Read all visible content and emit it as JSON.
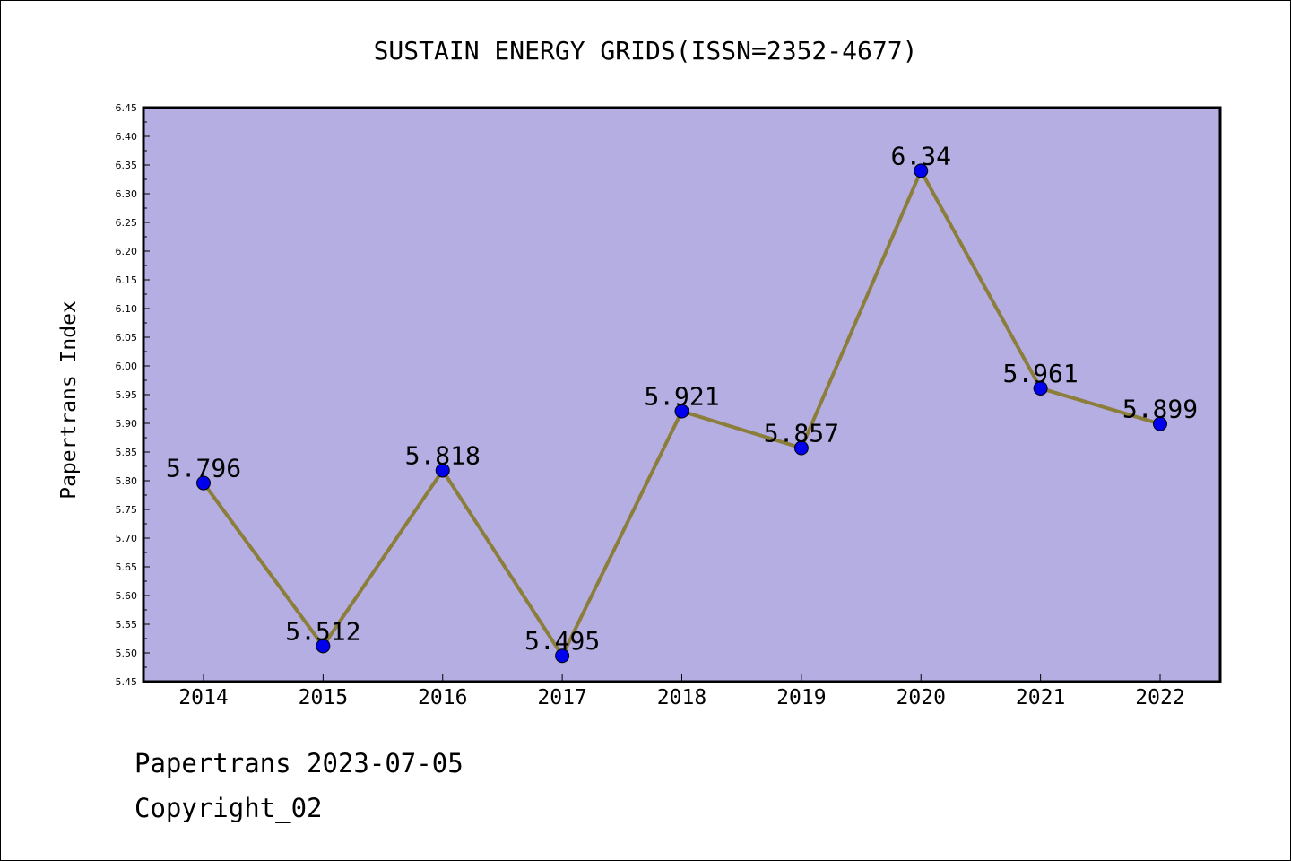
{
  "footer": {
    "line1": "Papertrans 2023-07-05",
    "line2": "Copyright_02"
  },
  "chart_data": {
    "type": "line",
    "title": "SUSTAIN ENERGY GRIDS(ISSN=2352-4677)",
    "xlabel": "",
    "ylabel": "Papertrans Index",
    "categories": [
      "2014",
      "2015",
      "2016",
      "2017",
      "2018",
      "2019",
      "2020",
      "2021",
      "2022"
    ],
    "series": [
      {
        "values": [
          5.796,
          5.512,
          5.818,
          5.495,
          5.921,
          5.857,
          6.34,
          5.961,
          5.899
        ],
        "labels": [
          "5.796",
          "5.512",
          "5.818",
          "5.495",
          "5.921",
          "5.857",
          "6.34",
          "5.961",
          "5.899"
        ]
      }
    ],
    "ylim": [
      5.45,
      6.45
    ],
    "yticks": [
      "5.45",
      "5.50",
      "5.55",
      "5.60",
      "5.65",
      "5.70",
      "5.75",
      "5.80",
      "5.85",
      "5.90",
      "5.95",
      "6.00",
      "6.05",
      "6.10",
      "6.15",
      "6.20",
      "6.25",
      "6.30",
      "6.35",
      "6.40",
      "6.45"
    ],
    "grid": false,
    "legend": "none",
    "colors": {
      "plot_background": "#b5aee3",
      "line": "#8b7d3a",
      "marker": "#0000ee"
    }
  }
}
